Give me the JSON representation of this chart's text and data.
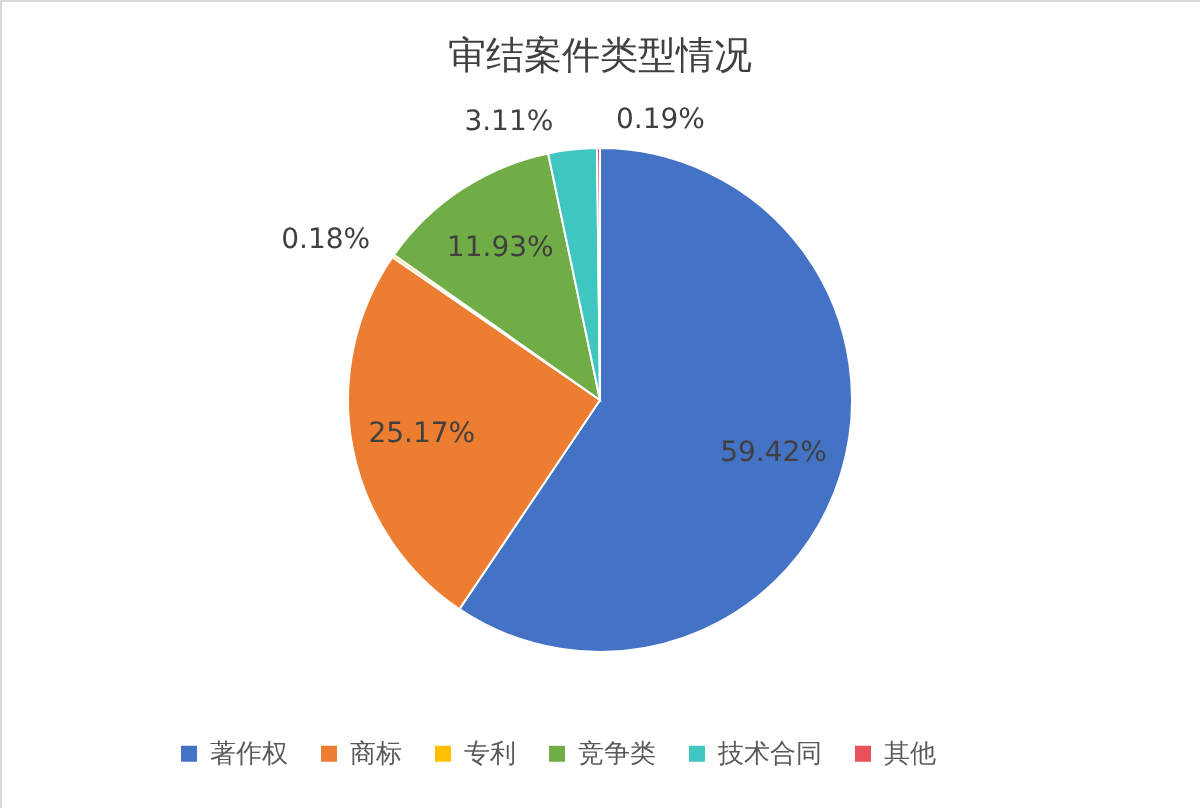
{
  "chart_data": {
    "type": "pie",
    "title": "审结案件类型情况",
    "categories": [
      "著作权",
      "商标",
      "专利",
      "竞争类",
      "技术合同",
      "其他"
    ],
    "values": [
      59.42,
      25.17,
      0.18,
      11.93,
      3.11,
      0.19
    ],
    "value_labels": [
      "59.42%",
      "25.17%",
      "0.18%",
      "11.93%",
      "3.11%",
      "0.19%"
    ],
    "colors": [
      "#4472c4",
      "#ed7d31",
      "#ffc000",
      "#70ad47",
      "#3fc6c0",
      "#e8505b"
    ],
    "legend": "bottom"
  }
}
